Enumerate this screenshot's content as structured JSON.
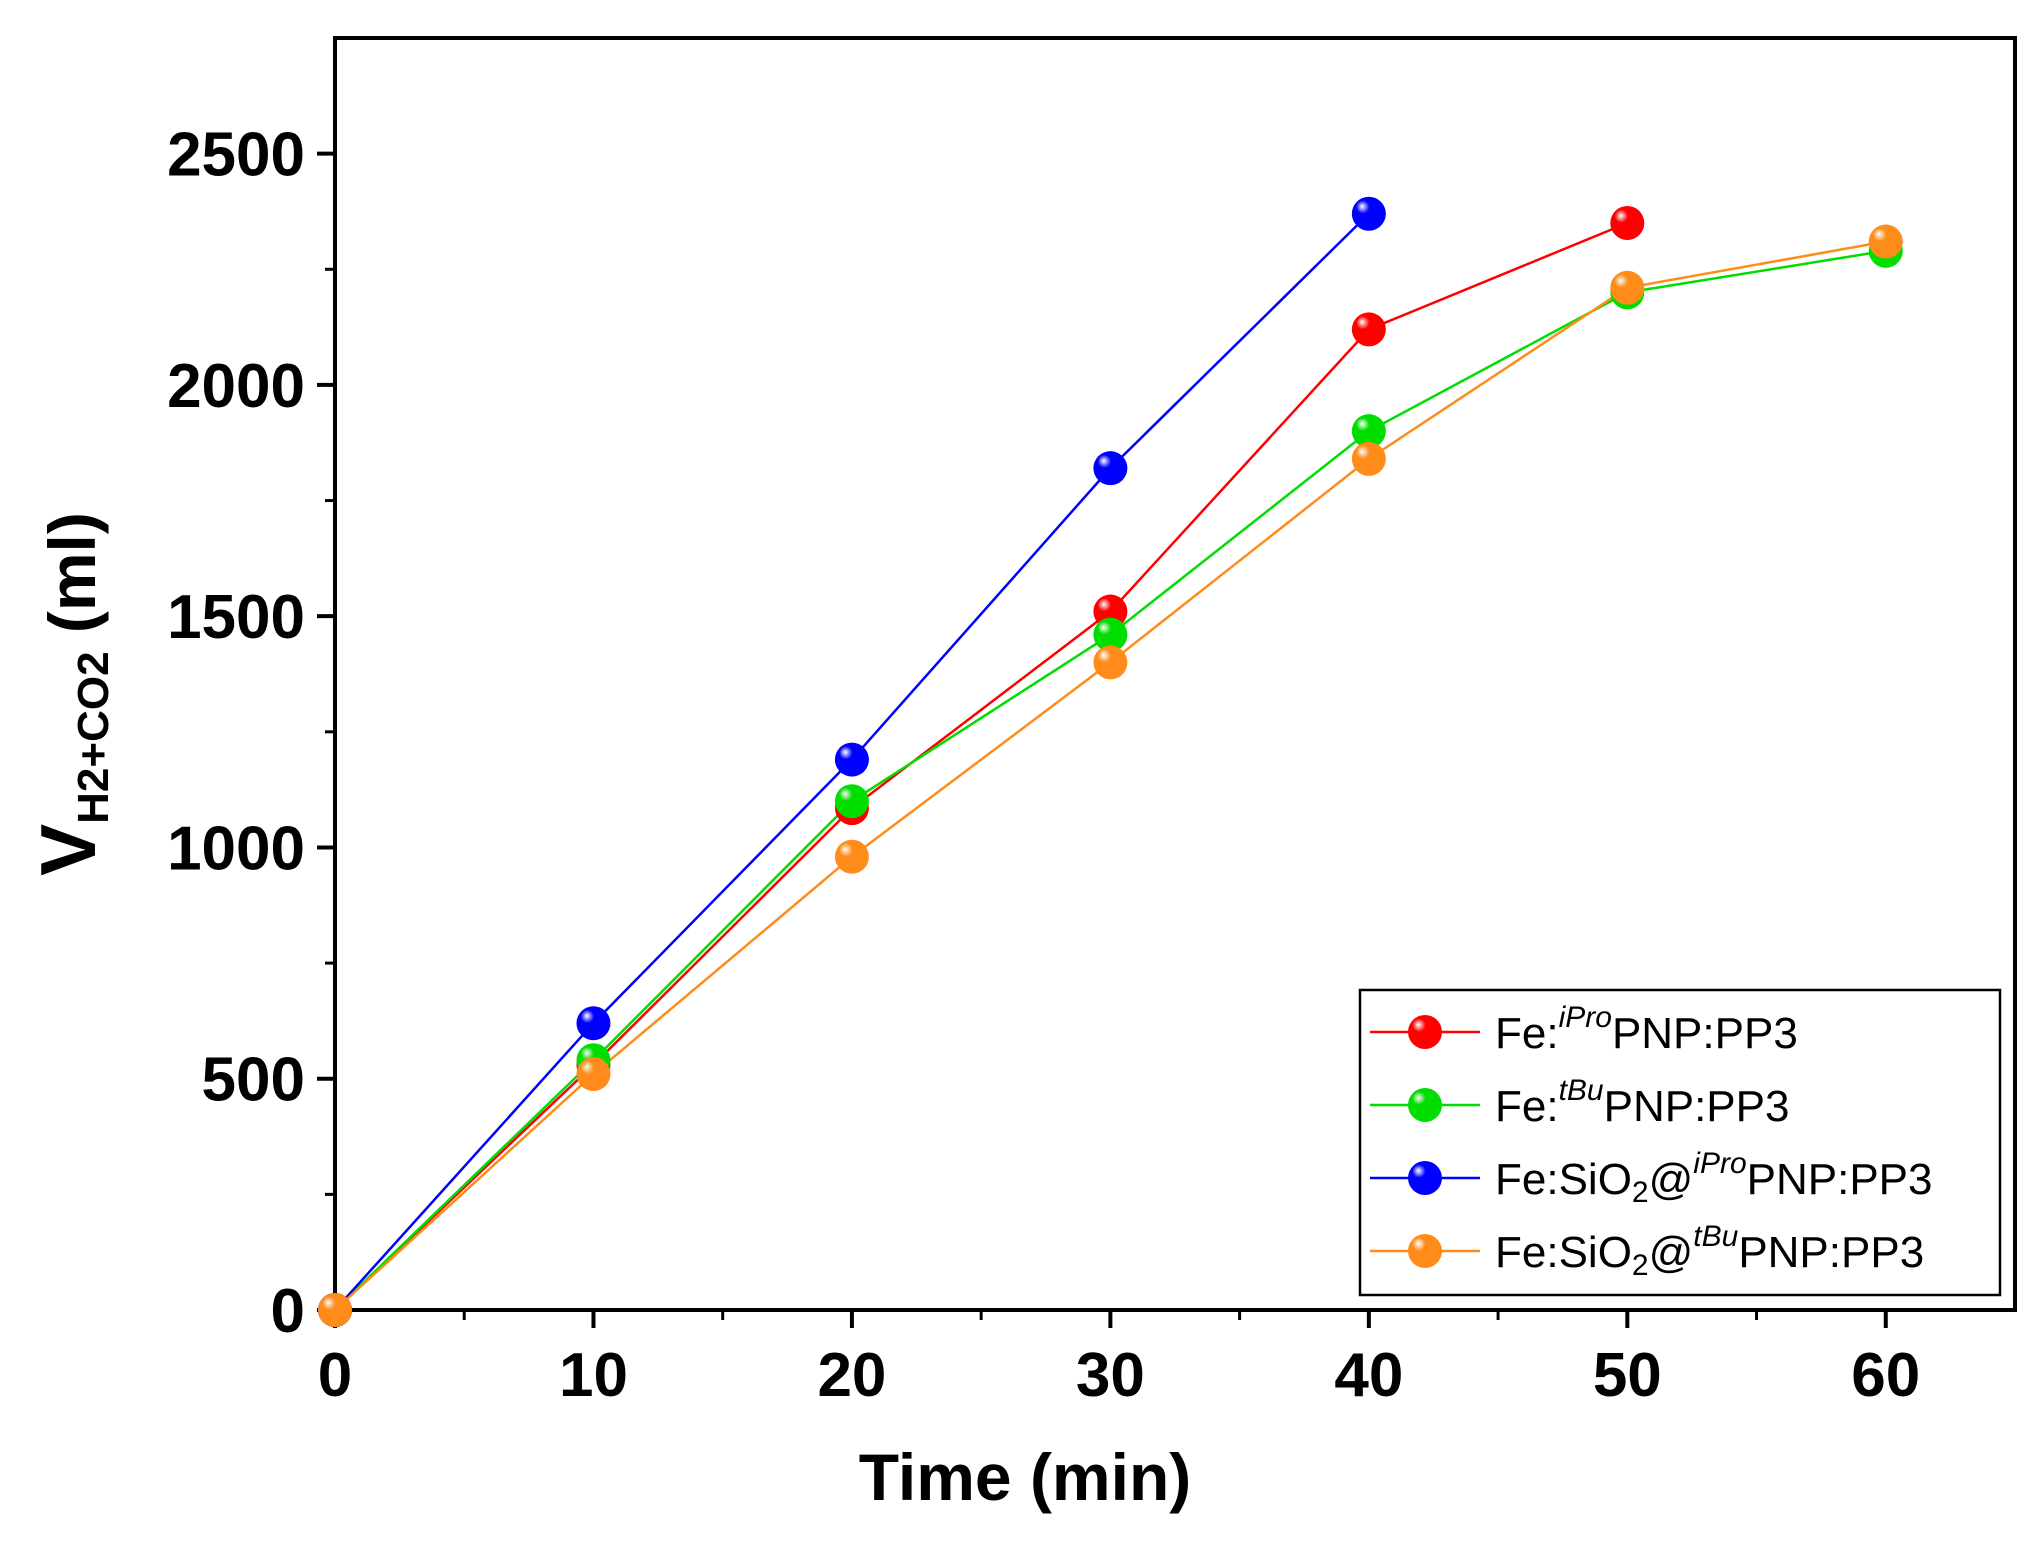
{
  "chart_data": {
    "type": "line",
    "title": "",
    "xlabel": "Time (min)",
    "ylabel": {
      "main": "V",
      "subscript": "H2+CO2",
      "suffix": " (ml)"
    },
    "xlim": [
      0,
      65
    ],
    "ylim": [
      0,
      2750
    ],
    "xticks": [
      0,
      10,
      20,
      30,
      40,
      50,
      60
    ],
    "yticks": [
      0,
      500,
      1000,
      1500,
      2000,
      2500
    ],
    "grid": false,
    "legend_position": "bottom-right",
    "series": [
      {
        "name": "Fe:iProPNP:PP3",
        "name_parts": [
          {
            "t": "Fe:",
            "s": "normal"
          },
          {
            "t": "iPro",
            "s": "sup"
          },
          {
            "t": "PNP:PP3",
            "s": "normal"
          }
        ],
        "color": "#ff0000",
        "x": [
          0,
          10,
          20,
          30,
          40,
          50
        ],
        "y": [
          0,
          530,
          1085,
          1510,
          2120,
          2350
        ]
      },
      {
        "name": "Fe:tBuPNP:PP3",
        "name_parts": [
          {
            "t": "Fe:",
            "s": "normal"
          },
          {
            "t": "tBu",
            "s": "sup"
          },
          {
            "t": "PNP:PP3",
            "s": "normal"
          }
        ],
        "color": "#00dd00",
        "x": [
          0,
          10,
          20,
          30,
          40,
          50,
          60
        ],
        "y": [
          0,
          540,
          1100,
          1460,
          1900,
          2200,
          2290
        ]
      },
      {
        "name": "Fe:SiO2@iProPNP:PP3",
        "name_parts": [
          {
            "t": "Fe:SiO",
            "s": "normal"
          },
          {
            "t": "2",
            "s": "sub"
          },
          {
            "t": "@",
            "s": "normal"
          },
          {
            "t": "iPro",
            "s": "sup"
          },
          {
            "t": "PNP:PP3",
            "s": "normal"
          }
        ],
        "color": "#0000ff",
        "x": [
          0,
          10,
          20,
          30,
          40
        ],
        "y": [
          0,
          620,
          1190,
          1820,
          2370
        ]
      },
      {
        "name": "Fe:SiO2@tBuPNP:PP3",
        "name_parts": [
          {
            "t": "Fe:SiO",
            "s": "normal"
          },
          {
            "t": "2",
            "s": "sub"
          },
          {
            "t": "@",
            "s": "normal"
          },
          {
            "t": "tBu",
            "s": "sup"
          },
          {
            "t": "PNP:PP3",
            "s": "normal"
          }
        ],
        "color": "#ff8c1a",
        "x": [
          0,
          10,
          20,
          30,
          40,
          50,
          60
        ],
        "y": [
          0,
          510,
          980,
          1400,
          1840,
          2210,
          2310
        ]
      }
    ]
  }
}
